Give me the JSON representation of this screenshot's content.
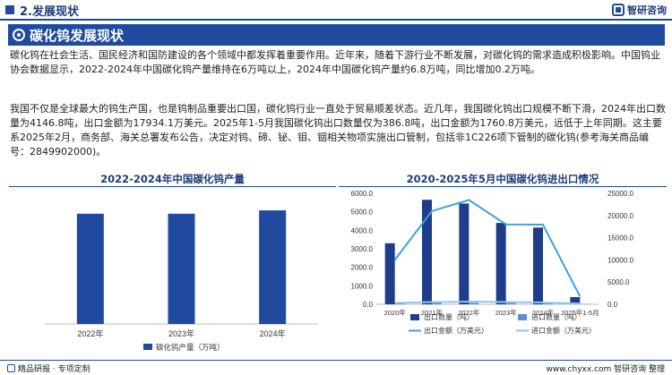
{
  "header": {
    "section_title": "2.发展现状",
    "brand": "智研咨询",
    "page_title": "碳化钨发展现状"
  },
  "body": {
    "paragraph1": "碳化钨在社会生活、国民经济和国防建设的各个领域中都发挥着重要作用。近年来，随着下游行业不断发展，对碳化钨的需求造成积极影响。中国钨业协会数据显示，2022-2024年中国碳化钨产量维持在6万吨以上，2024年中国碳化钨产量约6.8万吨，同比增加0.2万吨。",
    "paragraph2": "我国不仅是全球最大的钨生产国，也是钨制品重要出口国，碳化钨行业一直处于贸易顺差状态。近几年，我国碳化钨出口规模不断下滑，2024年出口数量为4146.8吨，出口金额为17934.1万美元。2025年1-5月我国碳化钨出口数量仅为386.8吨，出口金额为1760.8万美元，远低于上年同期。这主要系2025年2月，商务部、海关总署发布公告，决定对钨、碲、铋、钼、铟相关物项实施出口管制，包括非1C226项下管制的碳化钨(参考海关商品编号：2849902000)。"
  },
  "chart_data": [
    {
      "type": "bar",
      "title": "2022-2024年中国碳化钨产量",
      "categories": [
        "2022年",
        "2023年",
        "2024年"
      ],
      "series": [
        {
          "name": "碳化钨产量（万吨）",
          "values": [
            6.6,
            6.6,
            6.8
          ]
        }
      ],
      "ylim": [
        0,
        7.5
      ],
      "legend": "bottom",
      "bar_color": "#1f4aa0"
    },
    {
      "type": "bar",
      "title": "2020-2025年5月中国碳化钨进出口情况",
      "categories": [
        "2020年",
        "2021年",
        "2022年",
        "2023年",
        "2024年",
        "2025年1-5月"
      ],
      "left_ticks": [
        "0.0",
        "1000.0",
        "2000.0",
        "3000.0",
        "4000.0",
        "5000.0",
        "6000.0"
      ],
      "right_ticks": [
        "0.0",
        "5000.0",
        "10000.0",
        "15000.0",
        "20000.0",
        "25000.0"
      ],
      "left_ylim": [
        0,
        6000
      ],
      "right_ylim": [
        0,
        25000
      ],
      "series": [
        {
          "name": "出口数量（吨）",
          "axis": "left",
          "kind": "bar",
          "color": "#1f3d8a",
          "values": [
            3300,
            5650,
            5450,
            4400,
            4146.8,
            386.8
          ]
        },
        {
          "name": "进口数量（吨）",
          "axis": "left",
          "kind": "bar",
          "color": "#5b8fd6",
          "values": [
            60,
            80,
            80,
            70,
            60,
            20
          ]
        },
        {
          "name": "出口金额（万美元）",
          "axis": "right",
          "kind": "line",
          "color": "#3da0e0",
          "values": [
            10000,
            21000,
            23500,
            18000,
            17934.1,
            1760.8
          ]
        },
        {
          "name": "进口金额（万美元）",
          "axis": "right",
          "kind": "line",
          "color": "#8ec7ef",
          "values": [
            300,
            500,
            600,
            500,
            400,
            150
          ]
        }
      ],
      "legend": "bottom"
    }
  ],
  "footer": {
    "left": "精品研报 · 专项定制",
    "right": "www.chyxx.com  智研咨询 整理"
  }
}
